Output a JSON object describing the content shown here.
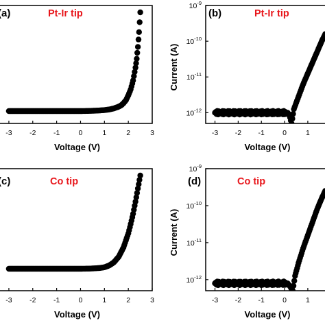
{
  "colors": {
    "marker": "#000000",
    "tag": "#e8161b",
    "axis": "#000000"
  },
  "chart_data": [
    {
      "id": "a",
      "type": "scatter",
      "scale": "linear",
      "panel_label": "(a)",
      "tag": "Pt-Ir tip",
      "xlabel": "Voltage (V)",
      "ylabel": "",
      "xlim": [
        -3.4,
        3.0
      ],
      "ylim": [
        0,
        1
      ],
      "xticks": [
        "-3",
        "-2",
        "-1",
        "0",
        "1",
        "2",
        "3"
      ],
      "yticks": [],
      "series": [
        {
          "x": [
            -3.0,
            -2.5,
            -2.0,
            -1.5,
            -1.0,
            -0.5,
            0.0,
            0.4,
            0.8,
            1.0,
            1.2,
            1.4,
            1.6,
            1.7,
            1.8,
            1.9,
            2.0,
            2.1,
            2.2,
            2.3,
            2.35,
            2.4,
            2.45,
            2.5
          ],
          "y": [
            0.0,
            0.0,
            0.0,
            0.0,
            0.0,
            0.0,
            0.0,
            0.002,
            0.006,
            0.01,
            0.016,
            0.027,
            0.045,
            0.058,
            0.08,
            0.11,
            0.16,
            0.22,
            0.31,
            0.44,
            0.53,
            0.65,
            0.8,
            1.0
          ]
        }
      ]
    },
    {
      "id": "b",
      "type": "scatter",
      "scale": "log",
      "panel_label": "(b)",
      "tag": "Pt-Ir tip",
      "xlabel": "Voltage (V)",
      "ylabel": "Current (A)",
      "xlim": [
        -3.4,
        1.8
      ],
      "ylim_exp": [
        -12.3,
        -9.0
      ],
      "xticks": [
        "-3",
        "-2",
        "-1",
        "0",
        "1"
      ],
      "yticks": [
        {
          "base": "10",
          "exp": "-9",
          "value": -9
        },
        {
          "base": "10",
          "exp": "-10",
          "value": -10
        },
        {
          "base": "10",
          "exp": "-11",
          "value": -11
        },
        {
          "base": "10",
          "exp": "-12",
          "value": -12
        }
      ],
      "series": [
        {
          "x": [
            -3.0,
            -2.5,
            -2.0,
            -1.5,
            -1.0,
            -0.5,
            0.0,
            0.2,
            0.3,
            0.4,
            0.6,
            0.8,
            1.0,
            1.2,
            1.4,
            1.6,
            1.75
          ],
          "y_exp": [
            -12.0,
            -12.0,
            -12.0,
            -12.0,
            -12.0,
            -12.0,
            -12.0,
            -12.05,
            -12.3,
            -11.9,
            -11.55,
            -11.2,
            -10.9,
            -10.6,
            -10.3,
            -10.0,
            -9.8
          ]
        }
      ]
    },
    {
      "id": "c",
      "type": "scatter",
      "scale": "linear",
      "panel_label": "(c)",
      "tag": "Co tip",
      "xlabel": "Voltage (V)",
      "ylabel": "",
      "xlim": [
        -3.4,
        3.0
      ],
      "ylim": [
        0,
        1
      ],
      "xticks": [
        "-3",
        "-2",
        "-1",
        "0",
        "1",
        "2",
        "3"
      ],
      "yticks": [],
      "series": [
        {
          "x": [
            -3.0,
            -2.5,
            -2.0,
            -1.5,
            -1.0,
            -0.5,
            0.0,
            0.4,
            0.8,
            1.0,
            1.2,
            1.4,
            1.6,
            1.8,
            2.0,
            2.1,
            2.2,
            2.3,
            2.4,
            2.5
          ],
          "y": [
            0.0,
            0.0,
            0.0,
            0.0,
            0.0,
            0.0,
            0.0,
            0.002,
            0.008,
            0.016,
            0.035,
            0.07,
            0.13,
            0.23,
            0.38,
            0.48,
            0.59,
            0.72,
            0.86,
            1.0
          ]
        }
      ]
    },
    {
      "id": "d",
      "type": "scatter",
      "scale": "log",
      "panel_label": "(d)",
      "tag": "Co tip",
      "xlabel": "Voltage (V)",
      "ylabel": "Current (A)",
      "xlim": [
        -3.4,
        1.8
      ],
      "ylim_exp": [
        -12.3,
        -9.0
      ],
      "xticks": [
        "-3",
        "-2",
        "-1",
        "0",
        "1"
      ],
      "yticks": [
        {
          "base": "10",
          "exp": "-9",
          "value": -9
        },
        {
          "base": "10",
          "exp": "-10",
          "value": -10
        },
        {
          "base": "10",
          "exp": "-11",
          "value": -11
        },
        {
          "base": "10",
          "exp": "-12",
          "value": -12
        }
      ],
      "series": [
        {
          "x": [
            -3.0,
            -2.5,
            -2.0,
            -1.5,
            -1.0,
            -0.5,
            0.0,
            0.2,
            0.35,
            0.45,
            0.6,
            0.8,
            1.0,
            1.2,
            1.4,
            1.6,
            1.75
          ],
          "y_exp": [
            -12.1,
            -12.1,
            -12.1,
            -12.1,
            -12.1,
            -12.1,
            -12.1,
            -12.15,
            -12.3,
            -11.9,
            -11.55,
            -11.15,
            -10.8,
            -10.45,
            -10.1,
            -9.8,
            -9.6
          ]
        }
      ]
    }
  ]
}
